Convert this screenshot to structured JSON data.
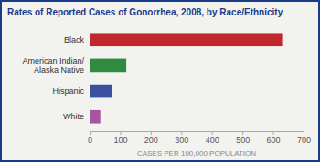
{
  "chart_data": {
    "type": "bar",
    "orientation": "horizontal",
    "title": "Rates of Reported Cases of Gonorrhea, 2008, by Race/Ethnicity",
    "categories": [
      "White",
      "Hispanic",
      "American Indian/\nAlaska Native",
      "Black"
    ],
    "values": [
      35,
      72,
      120,
      630
    ],
    "colors": [
      "#a855a0",
      "#3a4fa0",
      "#2e8b40",
      "#c0272d"
    ],
    "xlabel": "CASES PER 100,000 POPULATION",
    "xlim": [
      0,
      700
    ],
    "xticks": [
      0,
      100,
      200,
      300,
      400,
      500,
      600,
      700
    ],
    "grid": false
  }
}
